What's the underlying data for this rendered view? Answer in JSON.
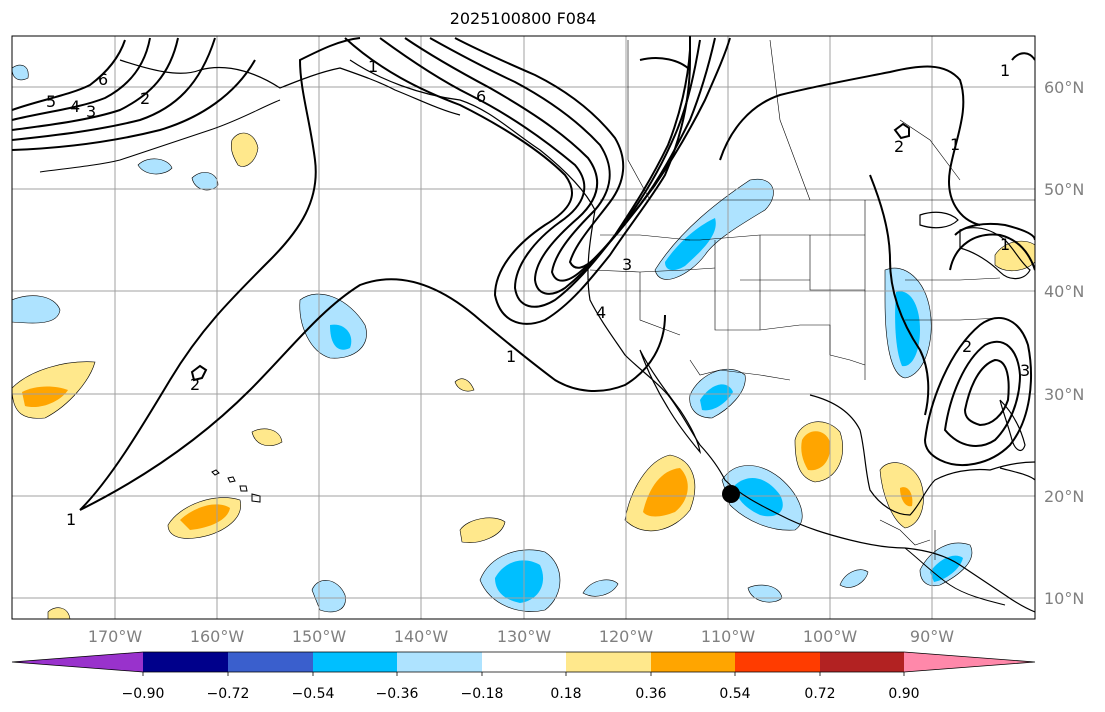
{
  "title": "2025100800 F084",
  "lon_labels": [
    "170°W",
    "160°W",
    "150°W",
    "140°W",
    "130°W",
    "120°W",
    "110°W",
    "100°W",
    "90°W"
  ],
  "lat_labels": [
    "10°N",
    "20°N",
    "30°N",
    "40°N",
    "50°N",
    "60°N"
  ],
  "colorbar": {
    "ticks": [
      "−0.90",
      "−0.72",
      "−0.54",
      "−0.36",
      "−0.18",
      "0.18",
      "0.36",
      "0.54",
      "0.72",
      "0.90"
    ],
    "colors": [
      "#9932cc",
      "#00008b",
      "#3a5fcd",
      "#00bfff",
      "#aee3ff",
      "#ffffff",
      "#ffe88c",
      "#ffa500",
      "#ff3c00",
      "#b22222",
      "#ff88aa"
    ]
  },
  "contour_labels": [
    "6",
    "5",
    "4",
    "3",
    "2",
    "1",
    "2",
    "1",
    "6",
    "3",
    "4",
    "1",
    "2",
    "1",
    "1",
    "2",
    "3",
    "1"
  ]
}
